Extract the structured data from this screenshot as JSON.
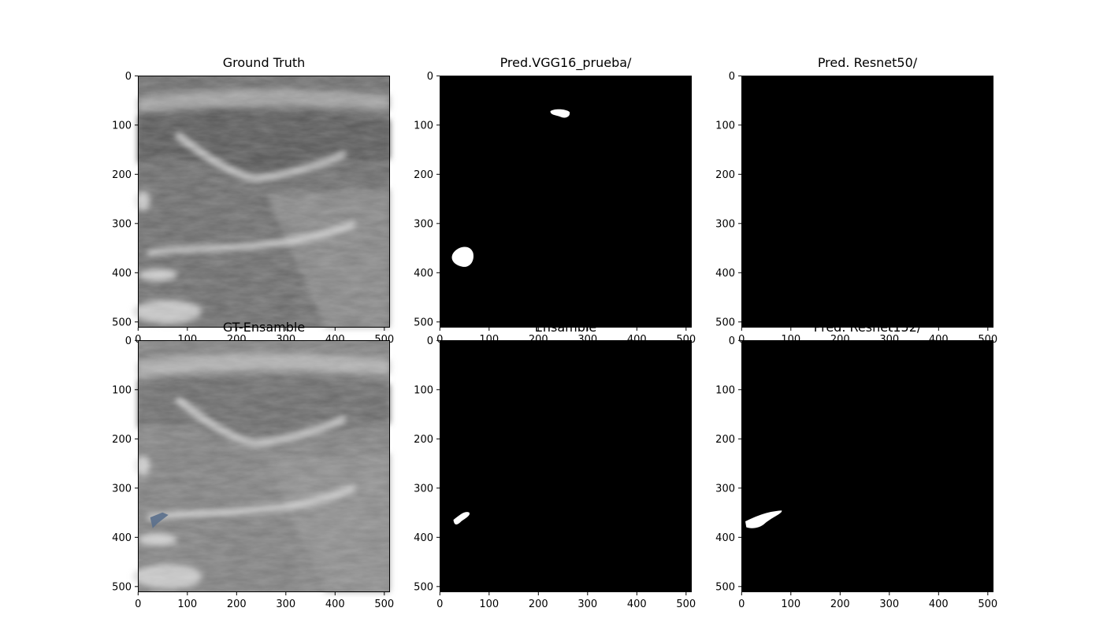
{
  "figure": {
    "panels": [
      {
        "id": "gt",
        "title": "Ground Truth",
        "kind": "ultrasound"
      },
      {
        "id": "vgg16",
        "title": "Pred.VGG16_prueba/",
        "kind": "mask"
      },
      {
        "id": "resnet50",
        "title": "Pred. Resnet50/",
        "kind": "mask"
      },
      {
        "id": "gt-ensamble",
        "title": "GT-Ensamble",
        "kind": "ultrasound-overlay"
      },
      {
        "id": "ensamble",
        "title": "Ensamble",
        "kind": "mask"
      },
      {
        "id": "resnet152",
        "title": "Pred. Resnet152/",
        "kind": "mask"
      }
    ],
    "axes": {
      "x_ticks": [
        "0",
        "100",
        "200",
        "300",
        "400",
        "500"
      ],
      "y_ticks": [
        "0",
        "100",
        "200",
        "300",
        "400",
        "500"
      ]
    },
    "colors": {
      "mask_background": "#000000",
      "mask_foreground": "#ffffff",
      "overlay_region": "#5a6f8c"
    }
  }
}
